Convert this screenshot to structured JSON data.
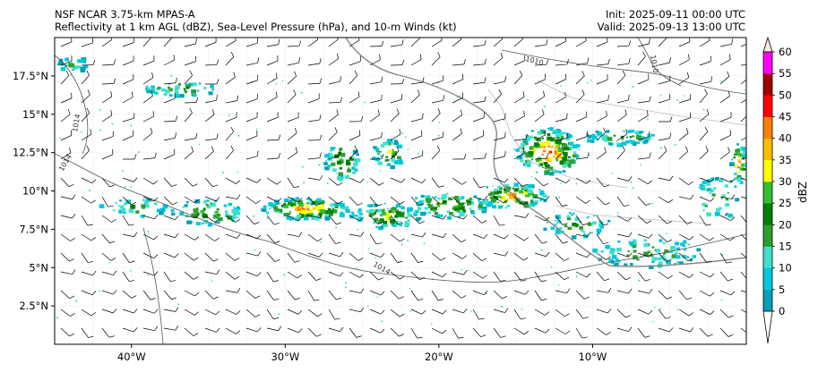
{
  "header": {
    "model": "NSF NCAR 3.75-km MPAS-A",
    "fields": "Reflectivity at 1 km AGL (dBZ), Sea-Level Pressure (hPa), and 10-m Winds (kt)",
    "init": "Init: 2025-09-11 00:00 UTC",
    "valid": "Valid: 2025-09-13 13:00 UTC"
  },
  "map": {
    "lon_range": [
      -45,
      0
    ],
    "lat_range": [
      0,
      20
    ],
    "lat_ticks": [
      {
        "value": 2.5,
        "label": "2.5°N"
      },
      {
        "value": 5,
        "label": "5°N"
      },
      {
        "value": 7.5,
        "label": "7.5°N"
      },
      {
        "value": 10,
        "label": "10°N"
      },
      {
        "value": 12.5,
        "label": "12.5°N"
      },
      {
        "value": 15,
        "label": "15°N"
      },
      {
        "value": 17.5,
        "label": "17.5°N"
      }
    ],
    "lon_ticks": [
      {
        "value": -40,
        "label": "40°W"
      },
      {
        "value": -30,
        "label": "30°W"
      },
      {
        "value": -20,
        "label": "20°W"
      },
      {
        "value": -10,
        "label": "10°W"
      }
    ],
    "isobar_labels": [
      "1014",
      "1014",
      "1014",
      "1010",
      "1010"
    ],
    "coastline_color": "#888888",
    "isobar_color": "#555555"
  },
  "colorbar": {
    "label": "dBZ",
    "levels": [
      0,
      5,
      10,
      15,
      20,
      25,
      30,
      35,
      40,
      45,
      50,
      55,
      60
    ],
    "colors": [
      "#00a0b8",
      "#00c8d8",
      "#40e0d0",
      "#2e9e2e",
      "#008000",
      "#30c030",
      "#ffff00",
      "#ffbf00",
      "#ff8000",
      "#ff0000",
      "#a00000",
      "#ff00ff",
      "#ffe8e0"
    ]
  }
}
